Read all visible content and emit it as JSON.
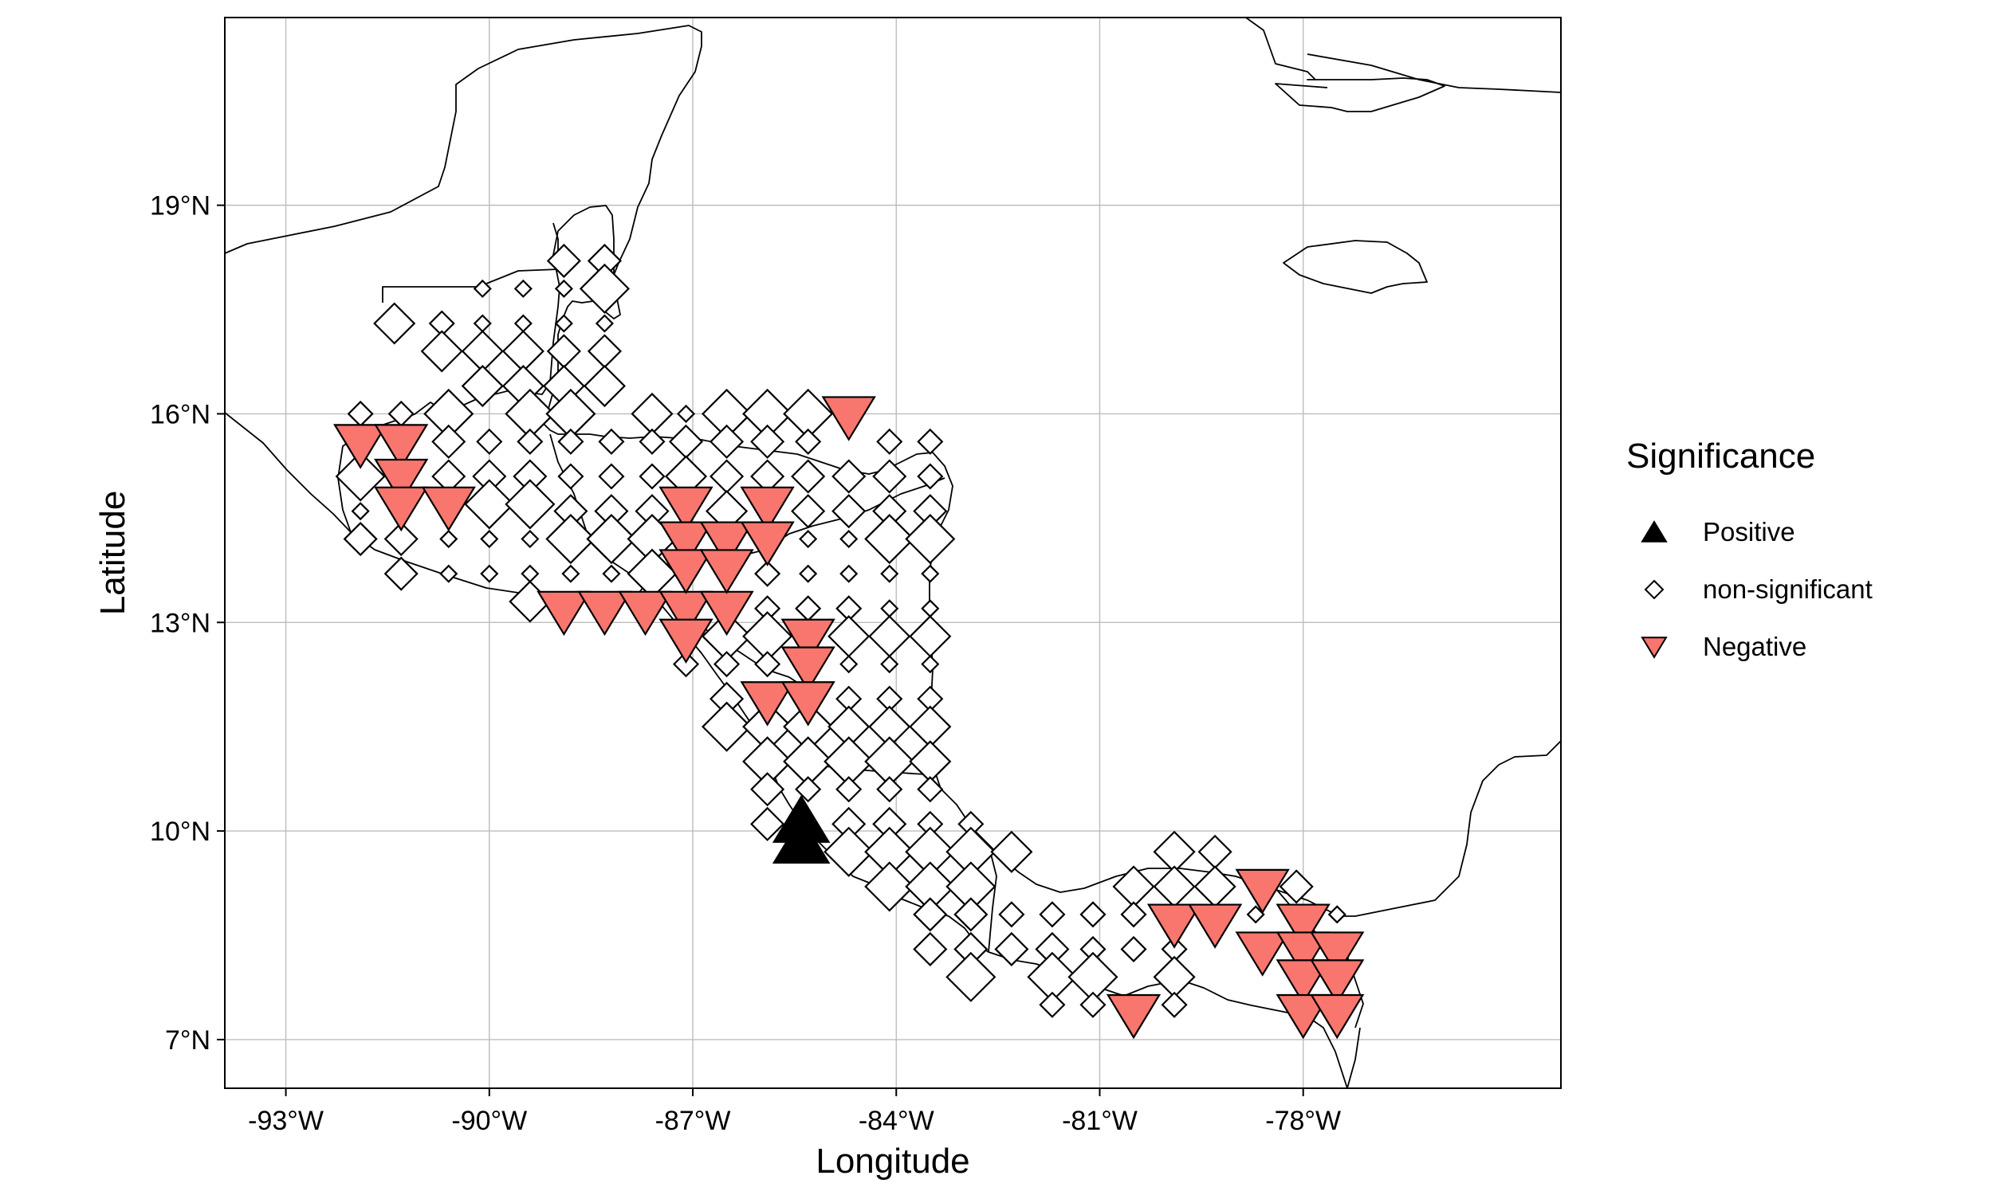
{
  "axes": {
    "xlabel": "Longitude",
    "ylabel": "Latitude",
    "x_ticks": [
      {
        "value": -93,
        "label": "-93°W"
      },
      {
        "value": -90,
        "label": "-90°W"
      },
      {
        "value": -87,
        "label": "-87°W"
      },
      {
        "value": -84,
        "label": "-84°W"
      },
      {
        "value": -81,
        "label": "-81°W"
      },
      {
        "value": -78,
        "label": "-78°W"
      }
    ],
    "y_ticks": [
      {
        "value": 7,
        "label": "7°N"
      },
      {
        "value": 10,
        "label": "10°N"
      },
      {
        "value": 13,
        "label": "13°N"
      },
      {
        "value": 16,
        "label": "16°N"
      },
      {
        "value": 19,
        "label": "19°N"
      }
    ],
    "xlim": [
      -93.9,
      -74.2
    ],
    "ylim": [
      6.3,
      21.7
    ],
    "grid": true
  },
  "legend": {
    "title": "Significance",
    "placement": "right",
    "entries": [
      {
        "label": "Positive",
        "shape": "triangle-up",
        "color": "#000000"
      },
      {
        "label": "non-significant",
        "shape": "diamond-open",
        "color": "#ffffff"
      },
      {
        "label": "Negative",
        "shape": "triangle-down",
        "color": "#F8766D"
      }
    ]
  },
  "colors": {
    "negative": "#F8766D",
    "positive": "#000000",
    "coast": "#000000",
    "grid": "#bdbdbd"
  },
  "chart_data": {
    "type": "scatter",
    "x_unit": "degrees longitude",
    "y_unit": "degrees latitude",
    "series": [
      {
        "name": "Positive",
        "points": [
          [
            -85.4,
            10.1
          ],
          [
            -85.4,
            9.8
          ]
        ]
      },
      {
        "name": "Negative",
        "points": [
          [
            -91.9,
            15.6
          ],
          [
            -91.3,
            15.6
          ],
          [
            -91.3,
            15.1
          ],
          [
            -91.3,
            14.7
          ],
          [
            -90.6,
            14.7
          ],
          [
            -88.9,
            13.2
          ],
          [
            -88.3,
            13.2
          ],
          [
            -87.7,
            13.2
          ],
          [
            -87.1,
            13.2
          ],
          [
            -86.5,
            13.2
          ],
          [
            -87.1,
            14.7
          ],
          [
            -87.1,
            14.2
          ],
          [
            -86.5,
            14.2
          ],
          [
            -87.1,
            13.8
          ],
          [
            -86.5,
            13.8
          ],
          [
            -87.1,
            12.8
          ],
          [
            -85.9,
            14.7
          ],
          [
            -85.9,
            14.2
          ],
          [
            -85.3,
            12.8
          ],
          [
            -85.3,
            12.4
          ],
          [
            -85.9,
            11.9
          ],
          [
            -85.3,
            11.9
          ],
          [
            -84.7,
            16.0
          ],
          [
            -80.5,
            7.4
          ],
          [
            -79.9,
            8.7
          ],
          [
            -79.3,
            8.7
          ],
          [
            -78.6,
            9.2
          ],
          [
            -78.6,
            8.3
          ],
          [
            -78.0,
            8.7
          ],
          [
            -78.0,
            8.3
          ],
          [
            -77.5,
            8.3
          ],
          [
            -78.0,
            7.9
          ],
          [
            -77.5,
            7.9
          ],
          [
            -78.0,
            7.4
          ],
          [
            -77.5,
            7.4
          ]
        ]
      },
      {
        "name": "non-significant",
        "points": [
          [
            -91.9,
            16.0
          ],
          [
            -91.3,
            16.0
          ],
          [
            -90.7,
            16.0
          ],
          [
            -91.4,
            17.3
          ],
          [
            -90.7,
            17.3
          ],
          [
            -90.7,
            16.9
          ],
          [
            -90.1,
            17.8
          ],
          [
            -90.1,
            17.3
          ],
          [
            -90.1,
            16.9
          ],
          [
            -90.1,
            16.4
          ],
          [
            -89.5,
            17.8
          ],
          [
            -89.5,
            17.3
          ],
          [
            -89.5,
            16.9
          ],
          [
            -89.5,
            16.4
          ],
          [
            -88.9,
            18.2
          ],
          [
            -88.9,
            17.8
          ],
          [
            -88.9,
            17.3
          ],
          [
            -88.9,
            16.9
          ],
          [
            -88.9,
            16.4
          ],
          [
            -88.3,
            18.2
          ],
          [
            -88.3,
            17.8
          ],
          [
            -88.3,
            17.3
          ],
          [
            -88.3,
            16.9
          ],
          [
            -88.3,
            16.4
          ],
          [
            -91.9,
            14.6
          ],
          [
            -91.9,
            14.2
          ],
          [
            -91.9,
            15.1
          ],
          [
            -91.3,
            14.2
          ],
          [
            -91.3,
            13.7
          ],
          [
            -90.6,
            16.0
          ],
          [
            -90.6,
            15.6
          ],
          [
            -90.6,
            15.1
          ],
          [
            -90.6,
            14.2
          ],
          [
            -90.6,
            13.7
          ],
          [
            -90.0,
            15.6
          ],
          [
            -90.0,
            15.1
          ],
          [
            -90.0,
            14.7
          ],
          [
            -90.0,
            14.2
          ],
          [
            -90.0,
            13.7
          ],
          [
            -89.4,
            16.0
          ],
          [
            -89.4,
            15.6
          ],
          [
            -89.4,
            15.1
          ],
          [
            -89.4,
            14.7
          ],
          [
            -89.4,
            14.2
          ],
          [
            -89.4,
            13.7
          ],
          [
            -89.4,
            13.3
          ],
          [
            -88.8,
            16.0
          ],
          [
            -88.8,
            15.6
          ],
          [
            -88.8,
            15.1
          ],
          [
            -88.8,
            14.6
          ],
          [
            -88.8,
            14.2
          ],
          [
            -88.8,
            13.7
          ],
          [
            -88.2,
            15.6
          ],
          [
            -88.2,
            15.1
          ],
          [
            -88.2,
            14.6
          ],
          [
            -88.2,
            14.2
          ],
          [
            -88.2,
            13.7
          ],
          [
            -87.6,
            16.0
          ],
          [
            -87.6,
            15.6
          ],
          [
            -87.6,
            15.1
          ],
          [
            -87.6,
            14.6
          ],
          [
            -87.6,
            14.2
          ],
          [
            -87.6,
            13.7
          ],
          [
            -87.1,
            16.0
          ],
          [
            -87.1,
            15.6
          ],
          [
            -87.1,
            15.1
          ],
          [
            -87.1,
            12.4
          ],
          [
            -86.5,
            16.0
          ],
          [
            -86.5,
            15.6
          ],
          [
            -86.5,
            15.1
          ],
          [
            -86.5,
            14.6
          ],
          [
            -86.5,
            12.8
          ],
          [
            -86.5,
            12.4
          ],
          [
            -86.5,
            11.9
          ],
          [
            -86.5,
            11.5
          ],
          [
            -85.9,
            16.0
          ],
          [
            -85.9,
            15.6
          ],
          [
            -85.9,
            15.1
          ],
          [
            -85.9,
            13.7
          ],
          [
            -85.9,
            13.2
          ],
          [
            -85.9,
            12.8
          ],
          [
            -85.9,
            12.4
          ],
          [
            -85.9,
            11.5
          ],
          [
            -85.9,
            11.0
          ],
          [
            -85.9,
            10.6
          ],
          [
            -85.9,
            10.1
          ],
          [
            -85.3,
            16.0
          ],
          [
            -85.3,
            15.6
          ],
          [
            -85.3,
            15.1
          ],
          [
            -85.3,
            14.6
          ],
          [
            -85.3,
            14.2
          ],
          [
            -85.3,
            13.7
          ],
          [
            -85.3,
            13.2
          ],
          [
            -85.3,
            11.5
          ],
          [
            -85.3,
            11.0
          ],
          [
            -85.3,
            10.6
          ],
          [
            -84.7,
            15.1
          ],
          [
            -84.7,
            14.6
          ],
          [
            -84.7,
            14.2
          ],
          [
            -84.7,
            13.7
          ],
          [
            -84.7,
            13.2
          ],
          [
            -84.7,
            12.8
          ],
          [
            -84.7,
            12.4
          ],
          [
            -84.7,
            11.9
          ],
          [
            -84.7,
            11.5
          ],
          [
            -84.7,
            11.0
          ],
          [
            -84.7,
            10.6
          ],
          [
            -84.7,
            10.1
          ],
          [
            -84.7,
            9.7
          ],
          [
            -84.1,
            15.6
          ],
          [
            -84.1,
            15.1
          ],
          [
            -84.1,
            14.6
          ],
          [
            -84.1,
            14.2
          ],
          [
            -84.1,
            13.7
          ],
          [
            -84.1,
            13.2
          ],
          [
            -84.1,
            12.8
          ],
          [
            -84.1,
            12.4
          ],
          [
            -84.1,
            11.9
          ],
          [
            -84.1,
            11.5
          ],
          [
            -84.1,
            11.0
          ],
          [
            -84.1,
            10.6
          ],
          [
            -84.1,
            10.1
          ],
          [
            -84.1,
            9.7
          ],
          [
            -84.1,
            9.2
          ],
          [
            -83.5,
            15.6
          ],
          [
            -83.5,
            15.1
          ],
          [
            -83.5,
            14.6
          ],
          [
            -83.5,
            14.2
          ],
          [
            -83.5,
            13.7
          ],
          [
            -83.5,
            13.2
          ],
          [
            -83.5,
            12.8
          ],
          [
            -83.5,
            12.4
          ],
          [
            -83.5,
            11.9
          ],
          [
            -83.5,
            11.5
          ],
          [
            -83.5,
            11.0
          ],
          [
            -83.5,
            10.6
          ],
          [
            -83.5,
            10.1
          ],
          [
            -83.5,
            9.7
          ],
          [
            -83.5,
            9.2
          ],
          [
            -83.5,
            8.8
          ],
          [
            -83.5,
            8.3
          ],
          [
            -82.9,
            10.1
          ],
          [
            -82.9,
            9.7
          ],
          [
            -82.9,
            9.2
          ],
          [
            -82.9,
            8.8
          ],
          [
            -82.9,
            8.3
          ],
          [
            -82.9,
            7.9
          ],
          [
            -82.3,
            9.7
          ],
          [
            -82.3,
            8.8
          ],
          [
            -82.3,
            8.3
          ],
          [
            -81.7,
            8.8
          ],
          [
            -81.7,
            8.3
          ],
          [
            -81.7,
            7.9
          ],
          [
            -81.7,
            7.5
          ],
          [
            -81.1,
            8.8
          ],
          [
            -81.1,
            8.3
          ],
          [
            -81.1,
            7.9
          ],
          [
            -81.1,
            7.5
          ],
          [
            -80.5,
            9.2
          ],
          [
            -80.5,
            8.8
          ],
          [
            -80.5,
            8.3
          ],
          [
            -79.9,
            9.7
          ],
          [
            -79.9,
            9.2
          ],
          [
            -79.9,
            8.3
          ],
          [
            -79.9,
            7.9
          ],
          [
            -79.9,
            7.5
          ],
          [
            -79.3,
            9.7
          ],
          [
            -79.3,
            9.2
          ],
          [
            -78.7,
            8.8
          ],
          [
            -78.1,
            9.2
          ],
          [
            -77.5,
            8.8
          ]
        ]
      }
    ]
  }
}
